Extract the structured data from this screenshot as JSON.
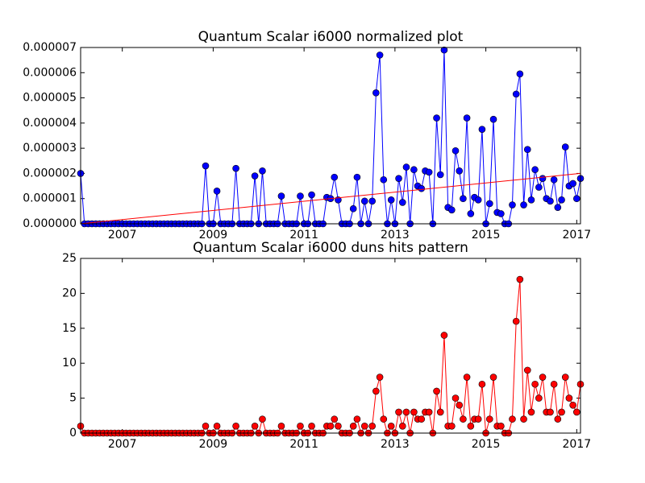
{
  "chart_data": [
    {
      "type": "line",
      "title": "Quantum Scalar i6000 normalized plot",
      "x": [
        2006.083,
        2006.167,
        2006.25,
        2006.333,
        2006.417,
        2006.5,
        2006.583,
        2006.667,
        2006.75,
        2006.833,
        2006.917,
        2007,
        2007.083,
        2007.167,
        2007.25,
        2007.333,
        2007.417,
        2007.5,
        2007.583,
        2007.667,
        2007.75,
        2007.833,
        2007.917,
        2008,
        2008.083,
        2008.167,
        2008.25,
        2008.333,
        2008.417,
        2008.5,
        2008.583,
        2008.667,
        2008.75,
        2008.833,
        2008.917,
        2009,
        2009.083,
        2009.167,
        2009.25,
        2009.333,
        2009.417,
        2009.5,
        2009.583,
        2009.667,
        2009.75,
        2009.833,
        2009.917,
        2010,
        2010.083,
        2010.167,
        2010.25,
        2010.333,
        2010.417,
        2010.5,
        2010.583,
        2010.667,
        2010.75,
        2010.833,
        2010.917,
        2011,
        2011.083,
        2011.167,
        2011.25,
        2011.333,
        2011.417,
        2011.5,
        2011.583,
        2011.667,
        2011.75,
        2011.833,
        2011.917,
        2012,
        2012.083,
        2012.167,
        2012.25,
        2012.333,
        2012.417,
        2012.5,
        2012.583,
        2012.667,
        2012.75,
        2012.833,
        2012.917,
        2013,
        2013.083,
        2013.167,
        2013.25,
        2013.333,
        2013.417,
        2013.5,
        2013.583,
        2013.667,
        2013.75,
        2013.833,
        2013.917,
        2014,
        2014.083,
        2014.167,
        2014.25,
        2014.333,
        2014.417,
        2014.5,
        2014.583,
        2014.667,
        2014.75,
        2014.833,
        2014.917,
        2015,
        2015.083,
        2015.167,
        2015.25,
        2015.333,
        2015.417,
        2015.5,
        2015.583,
        2015.667,
        2015.75,
        2015.833,
        2015.917,
        2016,
        2016.083,
        2016.167,
        2016.25,
        2016.333,
        2016.417,
        2016.5,
        2016.583,
        2016.667,
        2016.75,
        2016.833,
        2016.917,
        2017,
        2017.083
      ],
      "series": [
        {
          "color": "#0000ff",
          "marker": true,
          "values": [
            2e-06,
            0,
            0,
            0,
            0,
            0,
            0,
            0,
            0,
            0,
            0,
            0,
            0,
            0,
            0,
            0,
            0,
            0,
            0,
            0,
            0,
            0,
            0,
            0,
            0,
            0,
            0,
            0,
            0,
            0,
            0,
            0,
            0,
            2.3e-06,
            0,
            0,
            1.3e-06,
            0,
            0,
            0,
            0,
            2.2e-06,
            0,
            0,
            0,
            0,
            1.9e-06,
            0,
            2.1e-06,
            0,
            0,
            0,
            0,
            1.1e-06,
            0,
            0,
            0,
            0,
            1.1e-06,
            0,
            0,
            1.15e-06,
            0,
            0,
            0,
            1.05e-06,
            1e-06,
            1.85e-06,
            9.5e-07,
            0,
            0,
            0,
            6e-07,
            1.85e-06,
            0,
            9e-07,
            0,
            9e-07,
            5.2e-06,
            6.7e-06,
            1.75e-06,
            0,
            9.5e-07,
            0,
            1.8e-06,
            8.5e-07,
            2.25e-06,
            0,
            2.15e-06,
            1.5e-06,
            1.4e-06,
            2.1e-06,
            2.05e-06,
            0,
            4.2e-06,
            1.95e-06,
            6.9e-06,
            6.5e-07,
            5.5e-07,
            2.9e-06,
            2.1e-06,
            1e-06,
            4.2e-06,
            4e-07,
            1.05e-06,
            9.5e-07,
            3.75e-06,
            0,
            8e-07,
            4.15e-06,
            4.5e-07,
            4e-07,
            0,
            0,
            7.5e-07,
            5.15e-06,
            5.95e-06,
            7.5e-07,
            2.95e-06,
            9.5e-07,
            2.15e-06,
            1.45e-06,
            1.8e-06,
            1e-06,
            9e-07,
            1.75e-06,
            6.5e-07,
            9.5e-07,
            3.05e-06,
            1.5e-06,
            1.6e-06,
            1e-06,
            1.8e-06
          ]
        },
        {
          "color": "#ff0000",
          "marker": false,
          "x": [
            2006.083,
            2017.083
          ],
          "values": [
            0,
            2e-06
          ]
        }
      ],
      "xlim": [
        2006.083,
        2017.083
      ],
      "xticks": [
        2007,
        2009,
        2011,
        2013,
        2015,
        2017
      ],
      "ylim": [
        0,
        7e-06
      ],
      "yticks": [
        {
          "value": 0,
          "label": "0.000000"
        },
        {
          "value": 1e-06,
          "label": "0.000001"
        },
        {
          "value": 2e-06,
          "label": "0.000002"
        },
        {
          "value": 3e-06,
          "label": "0.000003"
        },
        {
          "value": 4e-06,
          "label": "0.000004"
        },
        {
          "value": 5e-06,
          "label": "0.000005"
        },
        {
          "value": 6e-06,
          "label": "0.000006"
        },
        {
          "value": 7e-06,
          "label": "0.000007"
        }
      ],
      "grid": false
    },
    {
      "type": "line",
      "title": "Quantum Scalar i6000 duns hits pattern",
      "x": [
        2006.083,
        2006.167,
        2006.25,
        2006.333,
        2006.417,
        2006.5,
        2006.583,
        2006.667,
        2006.75,
        2006.833,
        2006.917,
        2007,
        2007.083,
        2007.167,
        2007.25,
        2007.333,
        2007.417,
        2007.5,
        2007.583,
        2007.667,
        2007.75,
        2007.833,
        2007.917,
        2008,
        2008.083,
        2008.167,
        2008.25,
        2008.333,
        2008.417,
        2008.5,
        2008.583,
        2008.667,
        2008.75,
        2008.833,
        2008.917,
        2009,
        2009.083,
        2009.167,
        2009.25,
        2009.333,
        2009.417,
        2009.5,
        2009.583,
        2009.667,
        2009.75,
        2009.833,
        2009.917,
        2010,
        2010.083,
        2010.167,
        2010.25,
        2010.333,
        2010.417,
        2010.5,
        2010.583,
        2010.667,
        2010.75,
        2010.833,
        2010.917,
        2011,
        2011.083,
        2011.167,
        2011.25,
        2011.333,
        2011.417,
        2011.5,
        2011.583,
        2011.667,
        2011.75,
        2011.833,
        2011.917,
        2012,
        2012.083,
        2012.167,
        2012.25,
        2012.333,
        2012.417,
        2012.5,
        2012.583,
        2012.667,
        2012.75,
        2012.833,
        2012.917,
        2013,
        2013.083,
        2013.167,
        2013.25,
        2013.333,
        2013.417,
        2013.5,
        2013.583,
        2013.667,
        2013.75,
        2013.833,
        2013.917,
        2014,
        2014.083,
        2014.167,
        2014.25,
        2014.333,
        2014.417,
        2014.5,
        2014.583,
        2014.667,
        2014.75,
        2014.833,
        2014.917,
        2015,
        2015.083,
        2015.167,
        2015.25,
        2015.333,
        2015.417,
        2015.5,
        2015.583,
        2015.667,
        2015.75,
        2015.833,
        2015.917,
        2016,
        2016.083,
        2016.167,
        2016.25,
        2016.333,
        2016.417,
        2016.5,
        2016.583,
        2016.667,
        2016.75,
        2016.833,
        2016.917,
        2017,
        2017.083
      ],
      "series": [
        {
          "color": "#ff0000",
          "marker": true,
          "values": [
            1,
            0,
            0,
            0,
            0,
            0,
            0,
            0,
            0,
            0,
            0,
            0,
            0,
            0,
            0,
            0,
            0,
            0,
            0,
            0,
            0,
            0,
            0,
            0,
            0,
            0,
            0,
            0,
            0,
            0,
            0,
            0,
            0,
            1,
            0,
            0,
            1,
            0,
            0,
            0,
            0,
            1,
            0,
            0,
            0,
            0,
            1,
            0,
            2,
            0,
            0,
            0,
            0,
            1,
            0,
            0,
            0,
            0,
            1,
            0,
            0,
            1,
            0,
            0,
            0,
            1,
            1,
            2,
            1,
            0,
            0,
            0,
            1,
            2,
            0,
            1,
            0,
            1,
            6,
            8,
            2,
            0,
            1,
            0,
            3,
            1,
            3,
            0,
            3,
            2,
            2,
            3,
            3,
            0,
            6,
            3,
            14,
            1,
            1,
            5,
            4,
            2,
            8,
            1,
            2,
            2,
            7,
            0,
            2,
            8,
            1,
            1,
            0,
            0,
            2,
            16,
            22,
            2,
            9,
            3,
            7,
            5,
            8,
            3,
            3,
            7,
            2,
            3,
            8,
            5,
            4,
            3,
            7
          ]
        }
      ],
      "xlim": [
        2006.083,
        2017.083
      ],
      "xticks": [
        2007,
        2009,
        2011,
        2013,
        2015,
        2017
      ],
      "ylim": [
        0,
        25
      ],
      "yticks": [
        0,
        5,
        10,
        15,
        20,
        25
      ],
      "grid": false
    }
  ]
}
